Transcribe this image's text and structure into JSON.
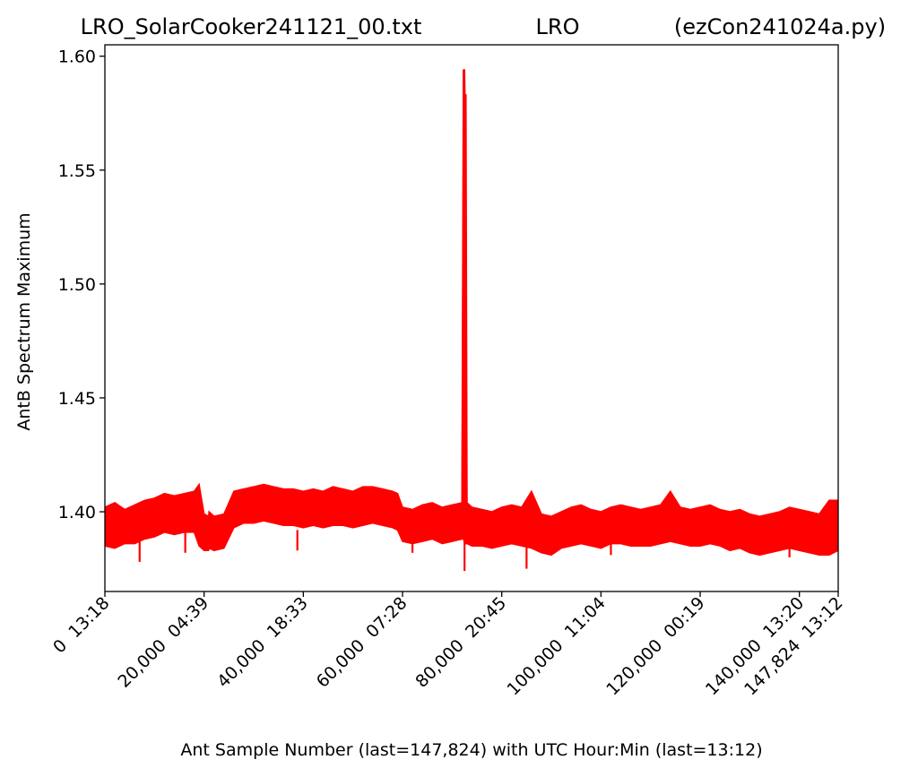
{
  "chart_data": {
    "type": "line",
    "title_left": "LRO_SolarCooker241121_00.txt",
    "title_center": "LRO",
    "title_right": "(ezCon241024a.py)",
    "xlabel": "Ant Sample Number (last=147,824) with UTC Hour:Min (last=13:12)",
    "ylabel": "AntB Spectrum Maximum",
    "xlim": [
      0,
      147824
    ],
    "ylim": [
      1.365,
      1.605
    ],
    "grid": false,
    "line_color": "#ff0000",
    "y_ticks": [
      {
        "value": 1.4,
        "label": "1.40"
      },
      {
        "value": 1.45,
        "label": "1.45"
      },
      {
        "value": 1.5,
        "label": "1.50"
      },
      {
        "value": 1.55,
        "label": "1.55"
      },
      {
        "value": 1.6,
        "label": "1.60"
      }
    ],
    "x_ticks": [
      {
        "value": 0,
        "label": "0  13:18"
      },
      {
        "value": 20000,
        "label": "20,000  04:39"
      },
      {
        "value": 40000,
        "label": "40,000  18:33"
      },
      {
        "value": 60000,
        "label": "60,000  07:28"
      },
      {
        "value": 80000,
        "label": "80,000  20:45"
      },
      {
        "value": 100000,
        "label": "100,000  11:04"
      },
      {
        "value": 120000,
        "label": "120,000  00:19"
      },
      {
        "value": 140000,
        "label": "140,000  13:20"
      },
      {
        "value": 147824,
        "label": "147,824  13:12"
      }
    ],
    "series": [
      {
        "x": [
          0,
          2000,
          4000,
          6000,
          8000,
          10000,
          12000,
          14000,
          16000,
          18000,
          19000,
          20000,
          20900,
          21000,
          22000,
          24000,
          26000,
          28000,
          30000,
          32000,
          34000,
          36000,
          38000,
          40000,
          42000,
          44000,
          46000,
          48000,
          50000,
          52000,
          54000,
          56000,
          58000,
          59000,
          60000,
          62000,
          64000,
          66000,
          68000,
          70000,
          72000,
          72300,
          72500,
          72600,
          72800,
          73000,
          74000,
          76000,
          78000,
          80000,
          82000,
          84000,
          86000,
          88000,
          90000,
          92000,
          94000,
          96000,
          98000,
          100000,
          102000,
          104000,
          106000,
          108000,
          110000,
          112000,
          114000,
          116000,
          118000,
          120000,
          122000,
          124000,
          126000,
          128000,
          130000,
          132000,
          134000,
          136000,
          138000,
          140000,
          142000,
          144000,
          146000,
          147824
        ],
        "y": [
          1.392,
          1.395,
          1.393,
          1.394,
          1.397,
          1.398,
          1.4,
          1.399,
          1.4,
          1.401,
          1.398,
          1.392,
          1.391,
          1.393,
          1.39,
          1.391,
          1.402,
          1.403,
          1.404,
          1.405,
          1.404,
          1.403,
          1.402,
          1.401,
          1.402,
          1.401,
          1.403,
          1.402,
          1.401,
          1.403,
          1.404,
          1.402,
          1.401,
          1.4,
          1.394,
          1.393,
          1.395,
          1.396,
          1.394,
          1.395,
          1.396,
          1.594,
          1.545,
          1.583,
          1.42,
          1.395,
          1.394,
          1.393,
          1.392,
          1.394,
          1.395,
          1.394,
          1.393,
          1.391,
          1.389,
          1.392,
          1.394,
          1.395,
          1.393,
          1.392,
          1.394,
          1.395,
          1.394,
          1.393,
          1.394,
          1.395,
          1.396,
          1.394,
          1.393,
          1.394,
          1.395,
          1.393,
          1.392,
          1.393,
          1.39,
          1.389,
          1.39,
          1.391,
          1.393,
          1.392,
          1.391,
          1.39,
          1.389,
          1.392
        ],
        "y_min_envelope": [
          1.385,
          1.384,
          1.386,
          1.386,
          1.388,
          1.389,
          1.391,
          1.39,
          1.391,
          1.391,
          1.385,
          1.383,
          1.383,
          1.384,
          1.383,
          1.384,
          1.393,
          1.395,
          1.395,
          1.396,
          1.395,
          1.394,
          1.394,
          1.393,
          1.394,
          1.393,
          1.394,
          1.394,
          1.393,
          1.394,
          1.395,
          1.394,
          1.393,
          1.392,
          1.387,
          1.386,
          1.387,
          1.388,
          1.386,
          1.387,
          1.388,
          1.388,
          1.386,
          1.386,
          1.386,
          1.386,
          1.385,
          1.385,
          1.384,
          1.385,
          1.386,
          1.385,
          1.384,
          1.382,
          1.381,
          1.384,
          1.385,
          1.386,
          1.385,
          1.384,
          1.386,
          1.386,
          1.385,
          1.385,
          1.385,
          1.386,
          1.387,
          1.386,
          1.385,
          1.385,
          1.386,
          1.385,
          1.383,
          1.384,
          1.382,
          1.381,
          1.382,
          1.383,
          1.384,
          1.383,
          1.382,
          1.381,
          1.381,
          1.383
        ],
        "y_max_envelope": [
          1.402,
          1.404,
          1.401,
          1.403,
          1.405,
          1.406,
          1.408,
          1.407,
          1.408,
          1.409,
          1.412,
          1.399,
          1.398,
          1.4,
          1.398,
          1.399,
          1.409,
          1.41,
          1.411,
          1.412,
          1.411,
          1.41,
          1.41,
          1.409,
          1.41,
          1.409,
          1.411,
          1.41,
          1.409,
          1.411,
          1.411,
          1.41,
          1.409,
          1.408,
          1.402,
          1.401,
          1.403,
          1.404,
          1.402,
          1.403,
          1.404,
          1.594,
          1.594,
          1.583,
          1.583,
          1.404,
          1.402,
          1.401,
          1.4,
          1.402,
          1.403,
          1.402,
          1.409,
          1.399,
          1.398,
          1.4,
          1.402,
          1.403,
          1.401,
          1.4,
          1.402,
          1.403,
          1.402,
          1.401,
          1.402,
          1.403,
          1.409,
          1.402,
          1.401,
          1.402,
          1.403,
          1.401,
          1.4,
          1.401,
          1.399,
          1.398,
          1.399,
          1.4,
          1.402,
          1.401,
          1.4,
          1.399,
          1.405,
          1.405
        ]
      }
    ],
    "dips": [
      {
        "x": 7000,
        "y": 1.378
      },
      {
        "x": 16200,
        "y": 1.382
      },
      {
        "x": 38800,
        "y": 1.383
      },
      {
        "x": 72500,
        "y": 1.374
      },
      {
        "x": 85000,
        "y": 1.375
      },
      {
        "x": 62000,
        "y": 1.382
      },
      {
        "x": 102000,
        "y": 1.381
      },
      {
        "x": 138000,
        "y": 1.38
      }
    ]
  }
}
